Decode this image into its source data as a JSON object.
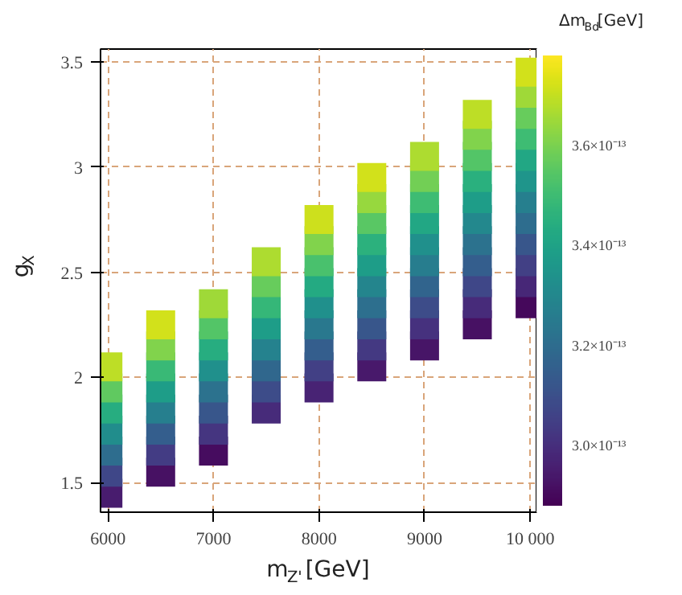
{
  "chart_data": {
    "type": "scatter",
    "xlabel": "m$_{Z'}$[GeV]",
    "ylabel": "g$_{X}$",
    "clabel": "Δm$_{Bd}$[GeV]",
    "marker": "square",
    "grid": true,
    "xlim": [
      5930,
      10060
    ],
    "ylim": [
      1.36,
      3.56
    ],
    "xticks": [
      6000,
      7000,
      8000,
      9000,
      {
        "value": 10000,
        "label": "10 000"
      }
    ],
    "yticks": [
      1.5,
      2.0,
      2.5,
      3.0,
      3.5
    ],
    "clim": [
      2.88e-13,
      3.78e-13
    ],
    "cticks": [
      {
        "value": 3e-13,
        "label": "3.0×10⁻¹³"
      },
      {
        "value": 3.2e-13,
        "label": "3.2×10⁻¹³"
      },
      {
        "value": 3.4e-13,
        "label": "3.4×10⁻¹³"
      },
      {
        "value": 3.6e-13,
        "label": "3.6×10⁻¹³"
      }
    ],
    "x": [
      6000,
      6000,
      6000,
      6000,
      6000,
      6000,
      6000,
      6500,
      6500,
      6500,
      6500,
      6500,
      6500,
      6500,
      6500,
      7000,
      7000,
      7000,
      7000,
      7000,
      7000,
      7000,
      7000,
      7500,
      7500,
      7500,
      7500,
      7500,
      7500,
      7500,
      7500,
      8000,
      8000,
      8000,
      8000,
      8000,
      8000,
      8000,
      8000,
      8000,
      8500,
      8500,
      8500,
      8500,
      8500,
      8500,
      8500,
      8500,
      8500,
      8500,
      9000,
      9000,
      9000,
      9000,
      9000,
      9000,
      9000,
      9000,
      9000,
      9000,
      9500,
      9500,
      9500,
      9500,
      9500,
      9500,
      9500,
      9500,
      9500,
      9500,
      9500,
      10000,
      10000,
      10000,
      10000,
      10000,
      10000,
      10000,
      10000,
      10000,
      10000,
      10000,
      10000
    ],
    "values": [
      1.45,
      1.55,
      1.65,
      1.75,
      1.85,
      1.95,
      2.05,
      1.55,
      1.65,
      1.75,
      1.85,
      1.95,
      2.05,
      2.15,
      2.25,
      1.65,
      1.75,
      1.85,
      1.95,
      2.05,
      2.15,
      2.25,
      2.35,
      1.85,
      1.95,
      2.05,
      2.15,
      2.25,
      2.35,
      2.45,
      2.55,
      1.95,
      2.05,
      2.15,
      2.25,
      2.35,
      2.45,
      2.55,
      2.65,
      2.75,
      2.05,
      2.15,
      2.25,
      2.35,
      2.45,
      2.55,
      2.65,
      2.75,
      2.85,
      2.95,
      2.15,
      2.25,
      2.35,
      2.45,
      2.55,
      2.65,
      2.75,
      2.85,
      2.95,
      3.05,
      2.25,
      2.35,
      2.45,
      2.55,
      2.65,
      2.75,
      2.85,
      2.95,
      3.05,
      3.15,
      3.25,
      2.35,
      2.45,
      2.55,
      2.65,
      2.75,
      2.85,
      2.95,
      3.05,
      3.15,
      3.25,
      3.35,
      3.45
    ],
    "cvalues": [
      2.95e-13,
      3.07e-13,
      3.2e-13,
      3.32e-13,
      3.44e-13,
      3.56e-13,
      3.69e-13,
      2.92e-13,
      3.04e-13,
      3.15e-13,
      3.27e-13,
      3.38e-13,
      3.49e-13,
      3.61e-13,
      3.72e-13,
      2.91e-13,
      3.02e-13,
      3.12e-13,
      3.22e-13,
      3.33e-13,
      3.44e-13,
      3.54e-13,
      3.65e-13,
      2.99e-13,
      3.09e-13,
      3.18e-13,
      3.28e-13,
      3.38e-13,
      3.48e-13,
      3.57e-13,
      3.67e-13,
      2.97e-13,
      3.05e-13,
      3.15e-13,
      3.24e-13,
      3.33e-13,
      3.43e-13,
      3.52e-13,
      3.61e-13,
      3.71e-13,
      2.94e-13,
      3.03e-13,
      3.12e-13,
      3.21e-13,
      3.29e-13,
      3.38e-13,
      3.46e-13,
      3.55e-13,
      3.64e-13,
      3.72e-13,
      2.93e-13,
      3.01e-13,
      3.09e-13,
      3.17e-13,
      3.26e-13,
      3.33e-13,
      3.42e-13,
      3.5e-13,
      3.59e-13,
      3.67e-13,
      2.92e-13,
      2.99e-13,
      3.07e-13,
      3.15e-13,
      3.22e-13,
      3.3e-13,
      3.38e-13,
      3.45e-13,
      3.54e-13,
      3.61e-13,
      3.69e-13,
      2.9e-13,
      2.98e-13,
      3.05e-13,
      3.12e-13,
      3.2e-13,
      3.27e-13,
      3.35e-13,
      3.42e-13,
      3.5e-13,
      3.57e-13,
      3.65e-13,
      3.72e-13
    ]
  }
}
